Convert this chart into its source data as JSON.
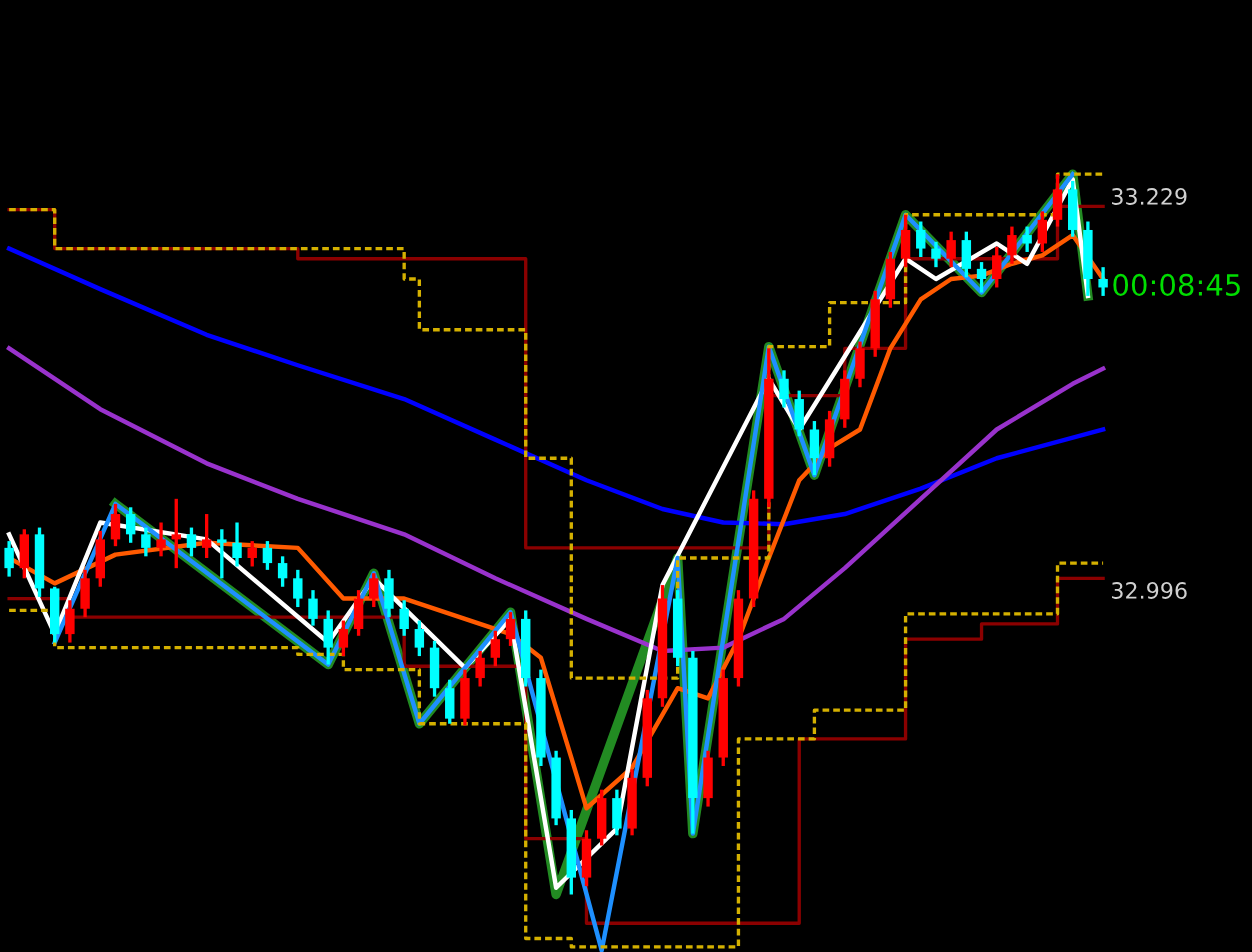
{
  "chart_data": {
    "type": "candlestick",
    "categories": [
      null,
      null,
      null,
      null,
      null,
      null,
      null,
      null,
      null,
      null,
      null,
      null,
      null,
      null,
      null,
      null,
      null,
      null,
      null,
      null,
      null,
      null,
      null,
      null,
      null,
      null,
      null,
      null,
      null,
      null,
      null,
      null,
      null,
      null,
      null,
      null,
      null,
      null,
      null,
      null,
      null,
      null,
      null,
      null,
      null,
      null,
      null,
      null,
      null,
      null,
      null,
      null,
      null,
      null,
      null,
      null,
      null,
      null,
      null,
      null,
      null,
      null,
      null,
      null,
      null,
      null,
      null,
      null,
      null,
      null,
      null,
      null,
      null
    ],
    "ohlc": [
      [
        33.021,
        33.025,
        33.004,
        33.009
      ],
      [
        33.009,
        33.032,
        33.003,
        33.029
      ],
      [
        33.029,
        33.033,
        32.992,
        32.997
      ],
      [
        32.997,
        32.998,
        32.965,
        32.97
      ],
      [
        32.97,
        32.99,
        32.965,
        32.985
      ],
      [
        32.985,
        33.008,
        32.98,
        33.003
      ],
      [
        33.003,
        33.031,
        32.998,
        33.026
      ],
      [
        33.026,
        33.047,
        33.022,
        33.041
      ],
      [
        33.041,
        33.045,
        33.024,
        33.029
      ],
      [
        33.029,
        33.033,
        33.016,
        33.021
      ],
      [
        33.021,
        33.036,
        33.016,
        33.026
      ],
      [
        33.026,
        33.05,
        33.009,
        33.029
      ],
      [
        33.029,
        33.033,
        33.016,
        33.021
      ],
      [
        33.021,
        33.041,
        33.015,
        33.026
      ],
      [
        33.026,
        33.032,
        33.003,
        33.024
      ],
      [
        33.024,
        33.036,
        33.01,
        33.015
      ],
      [
        33.015,
        33.025,
        33.01,
        33.021
      ],
      [
        33.021,
        33.025,
        33.008,
        33.012
      ],
      [
        33.012,
        33.016,
        32.998,
        33.003
      ],
      [
        33.003,
        33.008,
        32.986,
        32.991
      ],
      [
        32.991,
        32.996,
        32.975,
        32.979
      ],
      [
        32.979,
        32.984,
        32.952,
        32.962
      ],
      [
        32.962,
        32.978,
        32.957,
        32.973
      ],
      [
        32.973,
        32.996,
        32.969,
        32.991
      ],
      [
        32.991,
        33.006,
        32.986,
        33.003
      ],
      [
        33.003,
        33.008,
        32.98,
        32.985
      ],
      [
        32.985,
        32.99,
        32.969,
        32.973
      ],
      [
        32.973,
        32.978,
        32.957,
        32.962
      ],
      [
        32.962,
        32.966,
        32.933,
        32.938
      ],
      [
        32.938,
        32.943,
        32.917,
        32.92
      ],
      [
        32.92,
        32.949,
        32.916,
        32.944
      ],
      [
        32.944,
        32.96,
        32.939,
        32.956
      ],
      [
        32.956,
        32.972,
        32.951,
        32.967
      ],
      [
        32.967,
        32.983,
        32.963,
        32.979
      ],
      [
        32.979,
        32.984,
        32.939,
        32.944
      ],
      [
        32.944,
        32.949,
        32.892,
        32.897
      ],
      [
        32.897,
        32.901,
        32.857,
        32.861
      ],
      [
        32.861,
        32.866,
        32.816,
        32.826
      ],
      [
        32.826,
        32.854,
        32.821,
        32.849
      ],
      [
        32.849,
        32.878,
        32.845,
        32.873
      ],
      [
        32.873,
        32.878,
        32.851,
        32.855
      ],
      [
        32.855,
        32.89,
        32.851,
        32.885
      ],
      [
        32.885,
        32.937,
        32.88,
        32.932
      ],
      [
        32.932,
        32.999,
        32.927,
        32.991
      ],
      [
        32.991,
        32.996,
        32.951,
        32.956
      ],
      [
        32.956,
        32.96,
        32.852,
        32.873
      ],
      [
        32.873,
        32.901,
        32.868,
        32.897
      ],
      [
        32.897,
        32.949,
        32.892,
        32.944
      ],
      [
        32.944,
        32.996,
        32.939,
        32.991
      ],
      [
        32.991,
        33.055,
        32.986,
        33.05
      ],
      [
        33.05,
        33.139,
        33.045,
        33.121
      ],
      [
        33.121,
        33.126,
        33.104,
        33.109
      ],
      [
        33.109,
        33.114,
        33.087,
        33.091
      ],
      [
        33.091,
        33.096,
        33.064,
        33.074
      ],
      [
        33.074,
        33.102,
        33.069,
        33.097
      ],
      [
        33.097,
        33.126,
        33.092,
        33.121
      ],
      [
        33.121,
        33.143,
        33.116,
        33.139
      ],
      [
        33.139,
        33.173,
        33.134,
        33.168
      ],
      [
        33.168,
        33.196,
        33.163,
        33.192
      ],
      [
        33.192,
        33.218,
        33.187,
        33.209
      ],
      [
        33.209,
        33.214,
        33.193,
        33.198
      ],
      [
        33.198,
        33.202,
        33.187,
        33.192
      ],
      [
        33.192,
        33.208,
        33.187,
        33.203
      ],
      [
        33.203,
        33.208,
        33.181,
        33.186
      ],
      [
        33.186,
        33.19,
        33.172,
        33.18
      ],
      [
        33.18,
        33.199,
        33.175,
        33.194
      ],
      [
        33.194,
        33.211,
        33.189,
        33.206
      ],
      [
        33.206,
        33.211,
        33.196,
        33.201
      ],
      [
        33.201,
        33.22,
        33.196,
        33.215
      ],
      [
        33.215,
        33.242,
        33.211,
        33.233
      ],
      [
        33.233,
        33.238,
        33.205,
        33.209
      ],
      [
        33.209,
        33.214,
        33.17,
        33.18
      ],
      [
        33.18,
        33.187,
        33.17,
        33.175
      ]
    ],
    "colors": [
      "#00ffff",
      "#ff0000",
      "#00ffff",
      "#00ffff",
      "#ff0000",
      "#ff0000",
      "#ff0000",
      "#ff0000",
      "#00ffff",
      "#00ffff",
      "#ff0000",
      "#ff0000",
      "#00ffff",
      "#ff0000",
      "#00ffff",
      "#00ffff",
      "#ff0000",
      "#00ffff",
      "#00ffff",
      "#00ffff",
      "#00ffff",
      "#00ffff",
      "#ff0000",
      "#ff0000",
      "#ff0000",
      "#00ffff",
      "#00ffff",
      "#00ffff",
      "#00ffff",
      "#00ffff",
      "#ff0000",
      "#ff0000",
      "#ff0000",
      "#ff0000",
      "#00ffff",
      "#00ffff",
      "#00ffff",
      "#00ffff",
      "#ff0000",
      "#ff0000",
      "#00ffff",
      "#ff0000",
      "#ff0000",
      "#ff0000",
      "#00ffff",
      "#00ffff",
      "#ff0000",
      "#ff0000",
      "#ff0000",
      "#ff0000",
      "#ff0000",
      "#00ffff",
      "#00ffff",
      "#00ffff",
      "#ff0000",
      "#ff0000",
      "#ff0000",
      "#ff0000",
      "#ff0000",
      "#ff0000",
      "#00ffff",
      "#00ffff",
      "#ff0000",
      "#00ffff",
      "#00ffff",
      "#ff0000",
      "#ff0000",
      "#00ffff",
      "#ff0000",
      "#ff0000",
      "#00ffff",
      "#00ffff",
      "#00ffff"
    ],
    "series": [
      {
        "type": "line",
        "color": "#0000ff",
        "values": [
          33.198,
          null,
          null,
          null,
          null,
          null,
          33.174,
          null,
          null,
          null,
          null,
          null,
          null,
          33.147,
          null,
          null,
          null,
          null,
          null,
          33.129,
          null,
          null,
          null,
          null,
          null,
          null,
          33.109,
          null,
          null,
          null,
          null,
          null,
          33.085,
          null,
          null,
          null,
          null,
          null,
          33.061,
          null,
          null,
          null,
          null,
          33.044,
          null,
          null,
          null,
          33.036,
          null,
          null,
          null,
          33.035,
          null,
          null,
          null,
          33.041,
          null,
          null,
          null,
          null,
          33.056,
          null,
          null,
          null,
          null,
          33.074,
          null,
          null,
          null,
          null,
          null,
          null,
          33.091
        ]
      },
      {
        "type": "line",
        "color": "#9932cc",
        "values": [
          33.139,
          null,
          null,
          null,
          null,
          null,
          33.103,
          null,
          null,
          null,
          null,
          null,
          null,
          33.071,
          null,
          null,
          null,
          null,
          null,
          33.05,
          null,
          null,
          null,
          null,
          null,
          null,
          33.029,
          null,
          null,
          null,
          null,
          null,
          33.003,
          null,
          null,
          null,
          null,
          null,
          32.979,
          null,
          null,
          null,
          null,
          32.96,
          null,
          null,
          null,
          32.962,
          null,
          null,
          null,
          32.979,
          null,
          null,
          null,
          33.009,
          null,
          null,
          null,
          null,
          33.05,
          null,
          null,
          null,
          null,
          33.091,
          null,
          null,
          null,
          null,
          33.118,
          null,
          33.127
        ]
      },
      {
        "type": "line",
        "color": "#ff5a00",
        "values": [
          33.015,
          null,
          null,
          33.0,
          null,
          null,
          null,
          33.017,
          null,
          null,
          null,
          null,
          null,
          33.024,
          null,
          null,
          null,
          null,
          null,
          33.021,
          null,
          null,
          32.991,
          null,
          null,
          null,
          32.991,
          null,
          null,
          null,
          32.979,
          null,
          null,
          32.97,
          null,
          32.956,
          null,
          32.897,
          32.867,
          null,
          null,
          32.891,
          null,
          null,
          32.938,
          null,
          32.932,
          null,
          32.967,
          null,
          33.015,
          null,
          33.061,
          null,
          33.08,
          null,
          33.091,
          null,
          33.139,
          null,
          33.168,
          null,
          33.18,
          null,
          33.182,
          null,
          33.189,
          null,
          33.194,
          null,
          33.206,
          null,
          33.18
        ]
      },
      {
        "type": "line",
        "color": "#ffffff",
        "values": [
          33.029,
          null,
          null,
          32.97,
          null,
          null,
          33.036,
          null,
          null,
          null,
          null,
          null,
          null,
          33.026,
          null,
          null,
          null,
          null,
          null,
          null,
          null,
          32.965,
          null,
          null,
          33.003,
          null,
          null,
          null,
          null,
          null,
          32.95,
          null,
          null,
          32.979,
          null,
          null,
          32.82,
          null,
          null,
          null,
          32.855,
          null,
          null,
          32.999,
          null,
          null,
          null,
          null,
          null,
          null,
          33.121,
          null,
          33.091,
          null,
          null,
          null,
          null,
          null,
          null,
          33.192,
          null,
          33.18,
          null,
          null,
          null,
          33.201,
          null,
          33.189,
          null,
          null,
          33.239,
          33.17,
          null
        ]
      },
      {
        "type": "line",
        "color": "#228b22",
        "values": [
          null,
          null,
          null,
          null,
          null,
          null,
          null,
          33.047,
          null,
          null,
          null,
          null,
          null,
          null,
          null,
          null,
          null,
          null,
          null,
          null,
          null,
          32.952,
          null,
          null,
          33.006,
          null,
          null,
          32.917,
          null,
          null,
          null,
          null,
          null,
          32.983,
          null,
          null,
          32.816,
          null,
          null,
          null,
          null,
          null,
          null,
          null,
          33.015,
          32.852,
          null,
          null,
          null,
          null,
          33.14,
          null,
          null,
          33.064,
          null,
          null,
          null,
          null,
          null,
          33.218,
          null,
          null,
          null,
          null,
          33.172,
          null,
          null,
          null,
          null,
          null,
          33.242,
          33.17,
          null
        ]
      },
      {
        "type": "line",
        "color": "#1e90ff",
        "values": [
          null,
          null,
          null,
          32.965,
          null,
          null,
          null,
          33.047,
          null,
          null,
          null,
          null,
          null,
          null,
          null,
          null,
          null,
          null,
          null,
          null,
          null,
          32.952,
          null,
          null,
          33.006,
          null,
          null,
          32.917,
          null,
          null,
          null,
          null,
          null,
          32.983,
          null,
          null,
          null,
          null,
          null,
          32.783,
          null,
          null,
          null,
          null,
          33.015,
          32.852,
          null,
          null,
          null,
          null,
          33.14,
          null,
          null,
          33.064,
          null,
          null,
          null,
          null,
          null,
          33.218,
          null,
          null,
          null,
          null,
          33.172,
          null,
          null,
          null,
          null,
          null,
          33.242,
          null,
          null
        ]
      },
      {
        "type": "step",
        "color": "#d4b000",
        "line_style": "dashed",
        "values": [
          33.221,
          null,
          null,
          33.198,
          null,
          null,
          null,
          null,
          null,
          null,
          null,
          null,
          null,
          null,
          null,
          null,
          null,
          null,
          null,
          null,
          null,
          null,
          null,
          null,
          null,
          null,
          33.18,
          33.15,
          null,
          null,
          null,
          null,
          null,
          null,
          33.074,
          null,
          null,
          32.944,
          null,
          null,
          null,
          null,
          null,
          null,
          33.015,
          null,
          null,
          null,
          null,
          null,
          33.14,
          null,
          null,
          null,
          33.166,
          null,
          null,
          null,
          null,
          33.218,
          null,
          null,
          null,
          null,
          null,
          null,
          null,
          null,
          null,
          33.242,
          null,
          null,
          33.242
        ]
      },
      {
        "type": "step",
        "color": "#d4b000",
        "line_style": "dashed",
        "values": [
          32.984,
          null,
          null,
          32.962,
          null,
          null,
          null,
          null,
          null,
          null,
          null,
          null,
          null,
          null,
          null,
          null,
          null,
          null,
          null,
          32.958,
          null,
          null,
          32.949,
          null,
          null,
          null,
          null,
          32.917,
          null,
          null,
          null,
          null,
          null,
          null,
          32.79,
          null,
          null,
          32.785,
          null,
          null,
          null,
          null,
          null,
          null,
          null,
          null,
          null,
          null,
          32.908,
          null,
          null,
          null,
          null,
          32.925,
          null,
          null,
          null,
          null,
          null,
          32.982,
          null,
          null,
          null,
          null,
          null,
          null,
          null,
          null,
          null,
          33.012,
          null,
          null,
          33.012
        ]
      },
      {
        "type": "step",
        "color": "#8b0000",
        "line_style": "solid",
        "values": [
          33.221,
          null,
          null,
          33.198,
          null,
          null,
          null,
          null,
          null,
          null,
          null,
          null,
          null,
          null,
          null,
          null,
          null,
          null,
          null,
          33.192,
          null,
          null,
          null,
          null,
          null,
          null,
          null,
          null,
          null,
          null,
          null,
          null,
          null,
          null,
          33.021,
          null,
          null,
          null,
          null,
          null,
          null,
          null,
          null,
          null,
          null,
          null,
          null,
          null,
          null,
          null,
          33.111,
          null,
          null,
          null,
          null,
          33.139,
          null,
          null,
          null,
          33.192,
          null,
          null,
          null,
          null,
          null,
          null,
          null,
          null,
          null,
          33.223,
          null,
          null,
          33.223
        ]
      },
      {
        "type": "step",
        "color": "#8b0000",
        "line_style": "solid",
        "values": [
          32.991,
          null,
          null,
          null,
          32.98,
          null,
          null,
          null,
          null,
          null,
          null,
          null,
          null,
          null,
          null,
          null,
          null,
          null,
          null,
          null,
          null,
          null,
          null,
          null,
          null,
          null,
          32.951,
          null,
          null,
          null,
          null,
          null,
          null,
          null,
          32.849,
          null,
          null,
          null,
          32.799,
          null,
          null,
          null,
          null,
          null,
          null,
          null,
          null,
          null,
          32.799,
          null,
          null,
          null,
          32.908,
          null,
          null,
          null,
          null,
          null,
          null,
          32.967,
          null,
          null,
          null,
          null,
          32.976,
          null,
          null,
          null,
          null,
          33.003,
          null,
          null,
          33.003
        ]
      }
    ],
    "ylim": [
      32.782,
      33.345
    ],
    "yticks": [
      33.229,
      32.996
    ],
    "tick_labels": "y",
    "annotations": [
      "00:08:45"
    ]
  }
}
